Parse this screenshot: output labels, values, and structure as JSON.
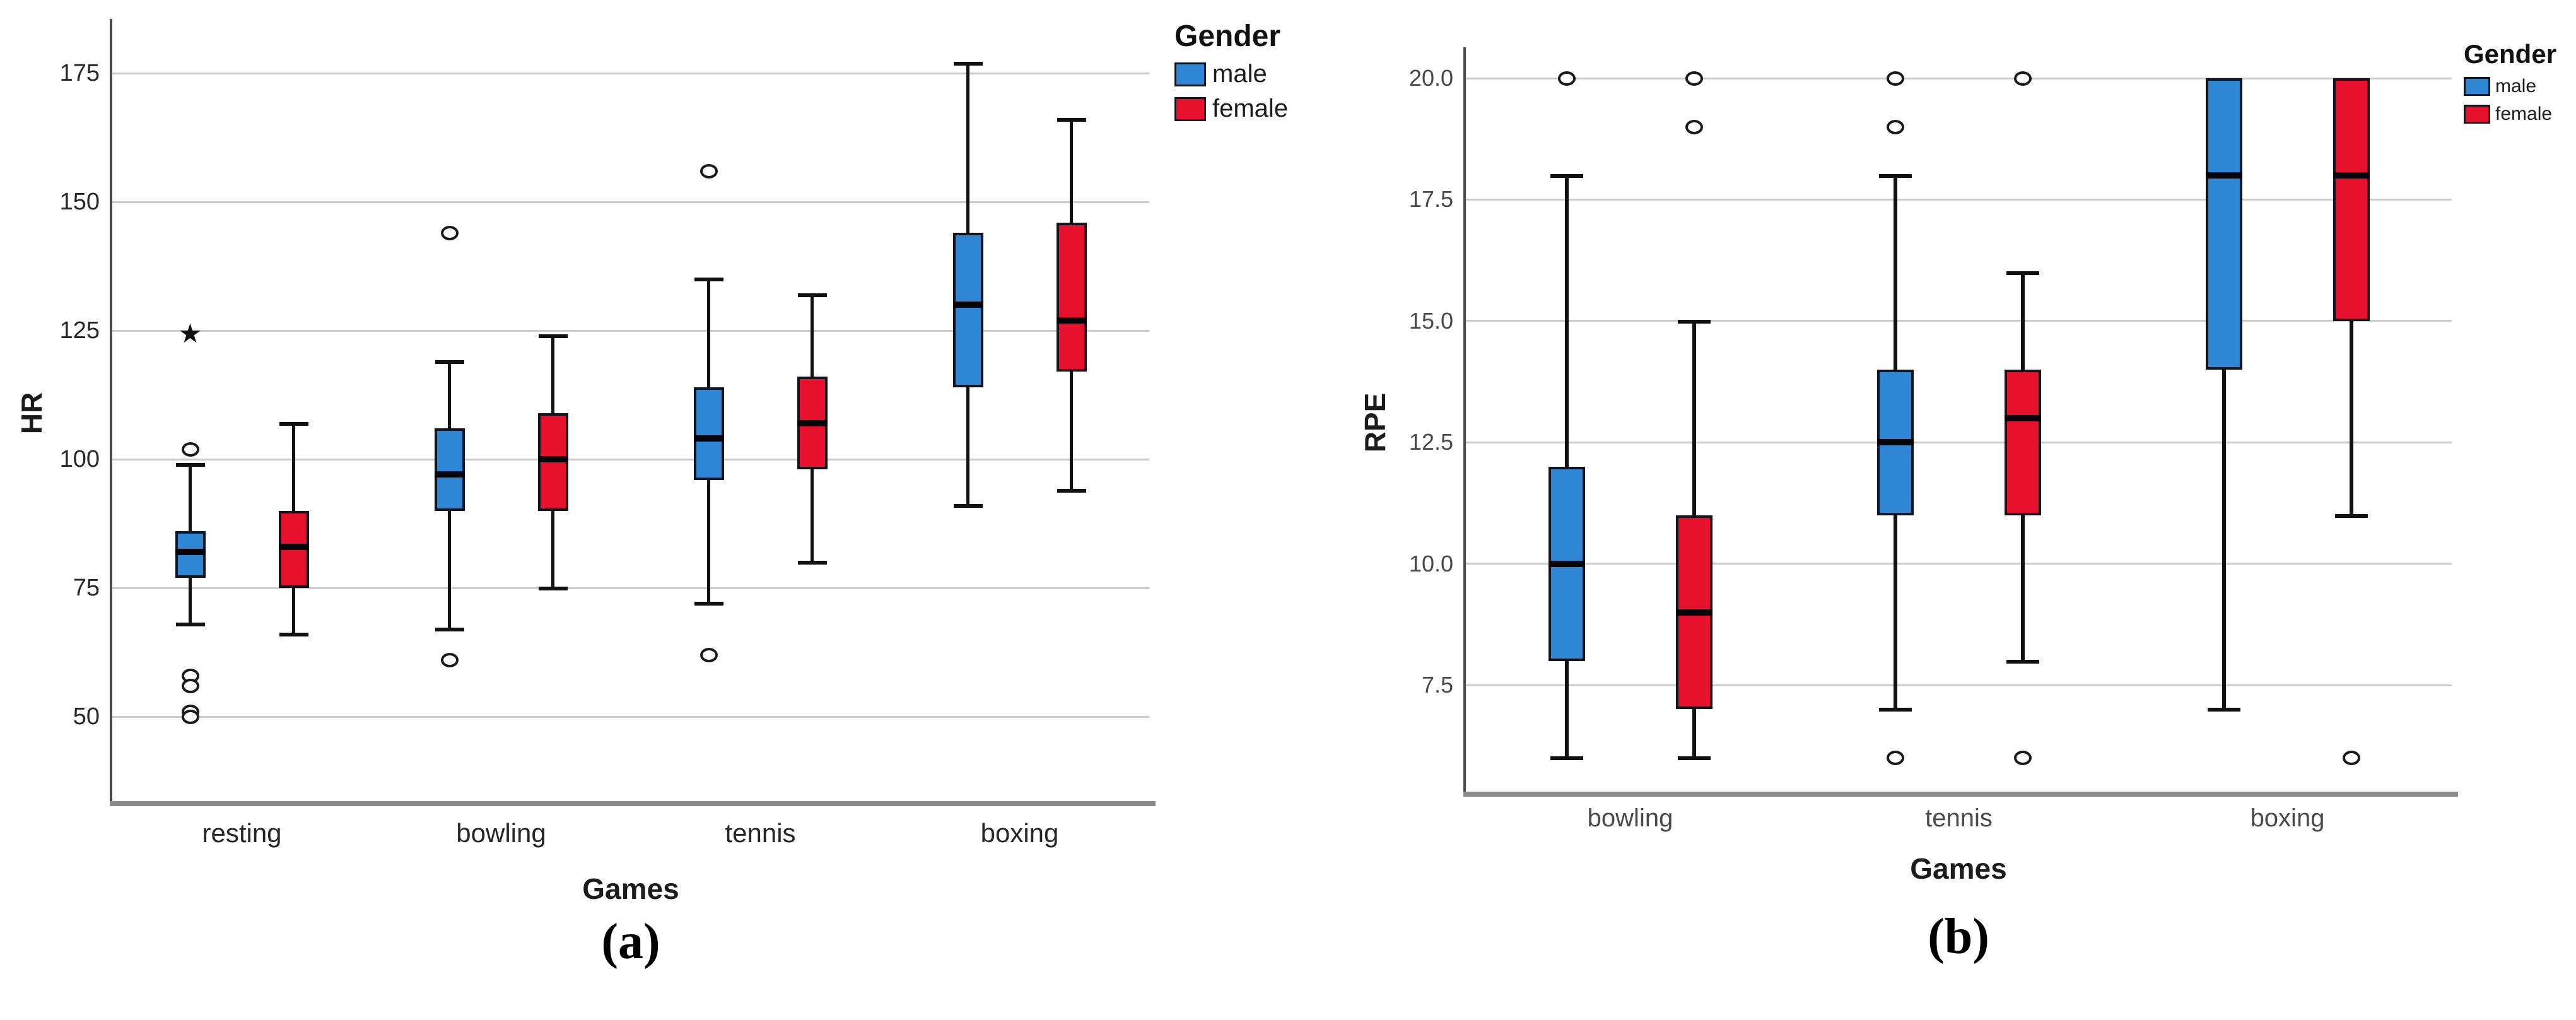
{
  "figure": {
    "caption_a": "(a)",
    "caption_b": "(b)"
  },
  "legend": {
    "title": "Gender",
    "items": [
      {
        "name": "male",
        "label": "male",
        "color": "#2E86D4"
      },
      {
        "name": "female",
        "label": "female",
        "color": "#E8112D"
      }
    ]
  },
  "markers": {
    "outlier": "circle",
    "extreme_star": "★"
  },
  "colors": {
    "male_fill": "#2E86D4",
    "female_fill": "#E8112D",
    "box_border": "#14141e",
    "gridline": "#cbcbcb",
    "y_axis": "#4a4a4a",
    "x_axis": "#8a8a8a"
  },
  "chart_data": [
    {
      "type": "box",
      "panel": "a",
      "title": "",
      "xlabel": "Games",
      "ylabel": "HR",
      "grid": "horizontal",
      "legend_position": "top-right-outside",
      "categories": [
        "resting",
        "bowling",
        "tennis",
        "boxing"
      ],
      "yticks": [
        50,
        75,
        100,
        125,
        150,
        175
      ],
      "ytick_labels": [
        "50",
        "75",
        "100",
        "125",
        "150",
        "175"
      ],
      "ylim": [
        33,
        186
      ],
      "series": [
        {
          "name": "male",
          "color": "#2E86D4",
          "boxes": [
            {
              "category": "resting",
              "low": 68,
              "q1": 77,
              "median": 82,
              "q3": 86,
              "high": 99,
              "outliers": [
                102,
                58,
                56,
                51,
                50
              ],
              "extremes": [
                124
              ]
            },
            {
              "category": "bowling",
              "low": 67,
              "q1": 90,
              "median": 97,
              "q3": 106,
              "high": 119,
              "outliers": [
                144,
                61
              ],
              "extremes": []
            },
            {
              "category": "tennis",
              "low": 72,
              "q1": 96,
              "median": 104,
              "q3": 114,
              "high": 135,
              "outliers": [
                156,
                62
              ],
              "extremes": []
            },
            {
              "category": "boxing",
              "low": 91,
              "q1": 114,
              "median": 130,
              "q3": 144,
              "high": 177,
              "outliers": [],
              "extremes": []
            }
          ]
        },
        {
          "name": "female",
          "color": "#E8112D",
          "boxes": [
            {
              "category": "resting",
              "low": 66,
              "q1": 75,
              "median": 83,
              "q3": 90,
              "high": 107,
              "outliers": [],
              "extremes": []
            },
            {
              "category": "bowling",
              "low": 75,
              "q1": 90,
              "median": 100,
              "q3": 109,
              "high": 124,
              "outliers": [],
              "extremes": []
            },
            {
              "category": "tennis",
              "low": 80,
              "q1": 98,
              "median": 107,
              "q3": 116,
              "high": 132,
              "outliers": [],
              "extremes": []
            },
            {
              "category": "boxing",
              "low": 94,
              "q1": 117,
              "median": 127,
              "q3": 146,
              "high": 166,
              "outliers": [],
              "extremes": []
            }
          ]
        }
      ]
    },
    {
      "type": "box",
      "panel": "b",
      "title": "",
      "xlabel": "Games",
      "ylabel": "RPE",
      "grid": "horizontal",
      "legend_position": "top-right-outside",
      "categories": [
        "bowling",
        "tennis",
        "boxing"
      ],
      "yticks": [
        7.5,
        10,
        12.5,
        15,
        17.5,
        20
      ],
      "ytick_labels": [
        "7.5",
        "10.0",
        "12.5",
        "15.0",
        "17.5",
        "20.0"
      ],
      "ylim": [
        5,
        21
      ],
      "series": [
        {
          "name": "male",
          "color": "#2E86D4",
          "boxes": [
            {
              "category": "bowling",
              "low": 6,
              "q1": 8,
              "median": 10,
              "q3": 12,
              "high": 18,
              "outliers": [
                20
              ],
              "extremes": []
            },
            {
              "category": "tennis",
              "low": 7,
              "q1": 11,
              "median": 12.5,
              "q3": 14,
              "high": 18,
              "outliers": [
                20,
                19,
                6
              ],
              "extremes": []
            },
            {
              "category": "boxing",
              "low": 7,
              "q1": 14,
              "median": 18,
              "q3": 20,
              "high": 20,
              "outliers": [],
              "extremes": []
            }
          ]
        },
        {
          "name": "female",
          "color": "#E8112D",
          "boxes": [
            {
              "category": "bowling",
              "low": 6,
              "q1": 7,
              "median": 9,
              "q3": 11,
              "high": 15,
              "outliers": [
                20,
                19
              ],
              "extremes": []
            },
            {
              "category": "tennis",
              "low": 8,
              "q1": 11,
              "median": 13,
              "q3": 14,
              "high": 16,
              "outliers": [
                20,
                6
              ],
              "extremes": []
            },
            {
              "category": "boxing",
              "low": 11,
              "q1": 15,
              "median": 18,
              "q3": 20,
              "high": 20,
              "outliers": [
                6
              ],
              "extremes": []
            }
          ]
        }
      ]
    }
  ]
}
